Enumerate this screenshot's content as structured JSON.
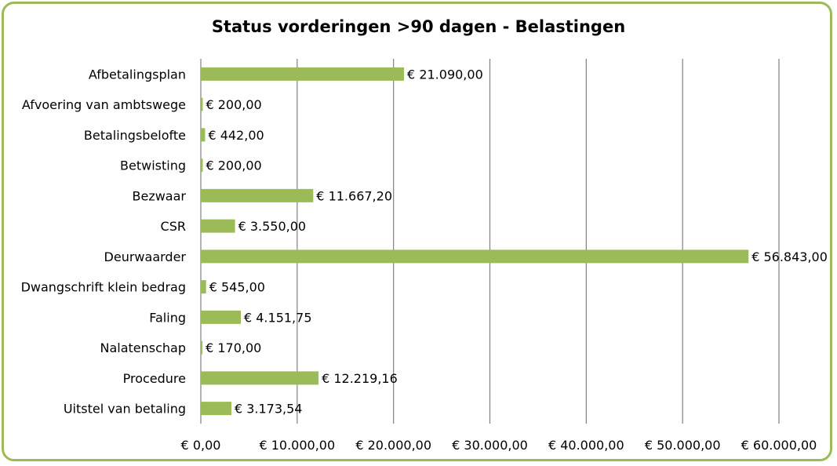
{
  "chart_data": {
    "type": "bar",
    "orientation": "horizontal",
    "title": "Status vorderingen >90 dagen - Belastingen",
    "categories": [
      "Afbetalingsplan",
      "Afvoering van ambtswege",
      "Betalingsbelofte",
      "Betwisting",
      "Bezwaar",
      "CSR",
      "Deurwaarder",
      "Dwangschrift klein bedrag",
      "Faling",
      "Nalatenschap",
      "Procedure",
      "Uitstel van betaling"
    ],
    "values": [
      21090.0,
      200.0,
      442.0,
      200.0,
      11667.2,
      3550.0,
      56843.0,
      545.0,
      4151.75,
      170.0,
      12219.16,
      3173.54
    ],
    "data_labels": [
      "€ 21.090,00",
      "€ 200,00",
      "€ 442,00",
      "€ 200,00",
      "€ 11.667,20",
      "€ 3.550,00",
      "€ 56.843,00",
      "€ 545,00",
      "€ 4.151,75",
      "€ 170,00",
      "€ 12.219,16",
      "€ 3.173,54"
    ],
    "xlim": [
      0,
      60000
    ],
    "x_ticks": [
      0,
      10000,
      20000,
      30000,
      40000,
      50000,
      60000
    ],
    "x_tick_labels": [
      "€ 0,00",
      "€ 10.000,00",
      "€ 20.000,00",
      "€ 30.000,00",
      "€ 40.000,00",
      "€ 50.000,00",
      "€ 60.000,00"
    ],
    "grid": "vertical",
    "legend": "none",
    "bar_color": "#9BBB59",
    "border_color": "#9BBB59",
    "grid_color": "#808080"
  }
}
